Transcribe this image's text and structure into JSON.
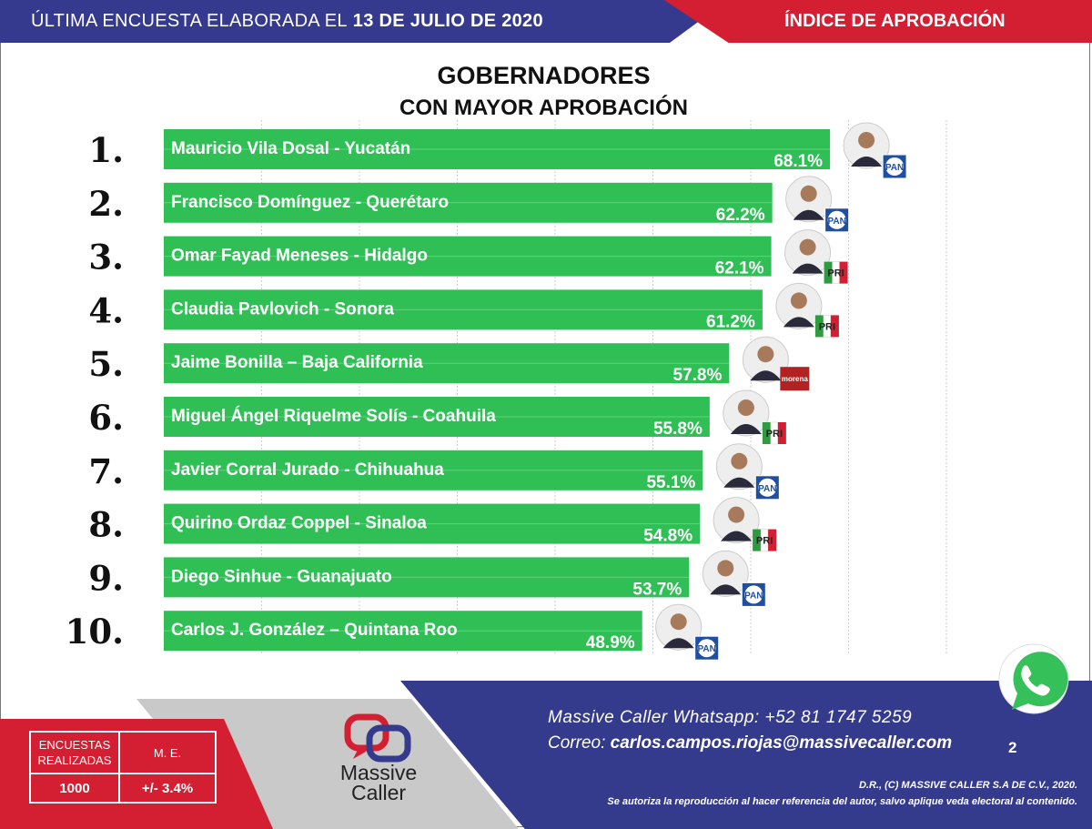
{
  "header": {
    "left_text": "ÚLTIMA ENCUESTA ELABORADA EL",
    "date": "13 DE JULIO DE 2020",
    "right_text": "ÍNDICE DE APROBACIÓN"
  },
  "colors": {
    "blue": "#353a8e",
    "red": "#d31f31",
    "bar_green": "#2fbf55"
  },
  "chart_data": {
    "type": "bar",
    "orientation": "horizontal",
    "title": "GOBERNADORES",
    "subtitle": "CON MAYOR APROBACIÓN",
    "ranks": [
      "1.",
      "2.",
      "3.",
      "4.",
      "5.",
      "6.",
      "7.",
      "8.",
      "9.",
      "10."
    ],
    "categories": [
      "Mauricio Vila Dosal - Yucatán",
      "Francisco Domínguez - Querétaro",
      "Omar Fayad Meneses - Hidalgo",
      "Claudia Pavlovich - Sonora",
      "Jaime Bonilla – Baja California",
      "Miguel Ángel Riquelme Solís - Coahuila",
      "Javier Corral Jurado - Chihuahua",
      "Quirino Ordaz Coppel - Sinaloa",
      "Diego Sinhue - Guanajuato",
      "Carlos J. González – Quintana Roo"
    ],
    "values": [
      68.1,
      62.2,
      62.1,
      61.2,
      57.8,
      55.8,
      55.1,
      54.8,
      53.7,
      48.9
    ],
    "value_labels": [
      "68.1%",
      "62.2%",
      "62.1%",
      "61.2%",
      "57.8%",
      "55.8%",
      "55.1%",
      "54.8%",
      "53.7%",
      "48.9%"
    ],
    "parties": [
      "PAN",
      "PAN",
      "PRI",
      "PRI",
      "morena",
      "PRI",
      "PAN",
      "PRI",
      "PAN",
      "PAN"
    ],
    "party_colors": {
      "PAN": "#1f4fa0",
      "PRI": "#d31f31",
      "morena": "#b22222"
    },
    "xlim": [
      0,
      80
    ],
    "grid": true
  },
  "footer": {
    "stats_header_1": "ENCUESTAS REALIZADAS",
    "stats_header_2": "M. E.",
    "stats_value_1": "1000",
    "stats_value_2": "+/- 3.4%",
    "logo_name": "Massive Caller",
    "contact_whatsapp": "Massive Caller Whatsapp: +52   81 1747 5259",
    "contact_email_label": "Correo:",
    "contact_email": "carlos.campos.riojas@massivecaller.com",
    "page_number": "2",
    "legal_1": "D.R., (C) MASSIVE CALLER S.A DE C.V., 2020.",
    "legal_2": "Se autoriza la reproducción al hacer referencia del autor, salvo aplique veda electoral al contenido."
  }
}
